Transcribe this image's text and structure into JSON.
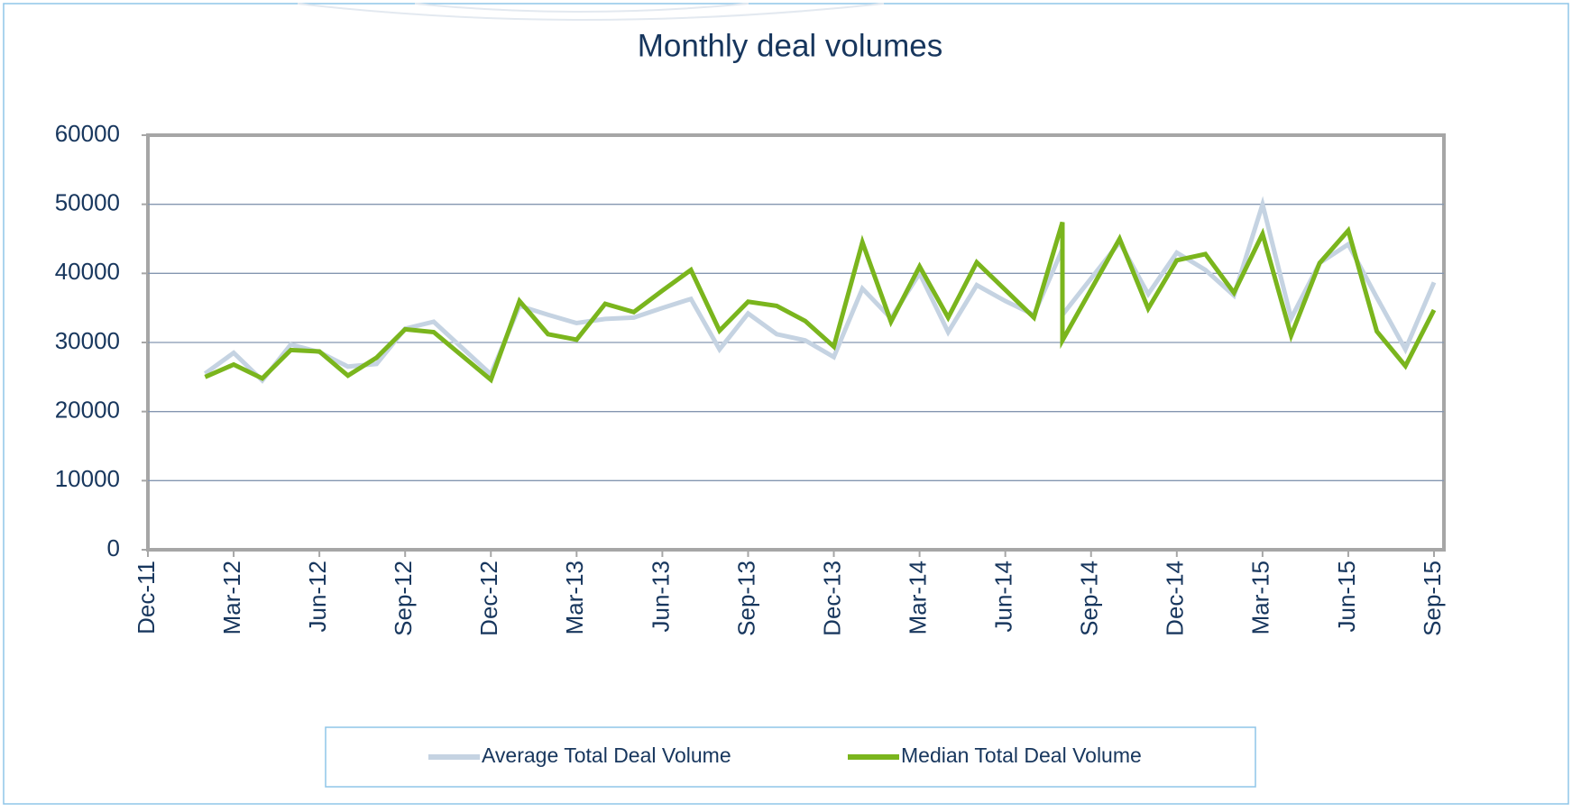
{
  "chart_data": {
    "type": "line",
    "title": "Monthly deal volumes",
    "x": [
      "2012-02",
      "2012-03",
      "2012-04",
      "2012-05",
      "2012-06",
      "2012-07",
      "2012-08",
      "2012-09",
      "2012-10",
      "2012-12",
      "2013-01",
      "2013-02",
      "2013-03",
      "2013-04",
      "2013-05",
      "2013-06",
      "2013-07",
      "2013-08",
      "2013-09",
      "2013-10",
      "2013-11",
      "2013-12",
      "2014-01",
      "2014-02",
      "2014-03",
      "2014-04",
      "2014-05",
      "2014-06",
      "2014-07",
      "2014-08",
      "2014-08",
      "2014-10",
      "2014-11",
      "2014-12",
      "2015-01",
      "2015-02",
      "2015-03",
      "2015-04",
      "2015-05",
      "2015-06",
      "2015-07",
      "2015-08",
      "2015-09"
    ],
    "series": [
      {
        "name": "Average Total Deal Volume",
        "color": "#c5d3e2",
        "values": [
          25500,
          28500,
          24500,
          29700,
          28600,
          26500,
          26900,
          32000,
          33000,
          25400,
          35300,
          34000,
          32800,
          33400,
          33600,
          35000,
          36300,
          29000,
          34200,
          31200,
          30300,
          27900,
          37800,
          33500,
          40000,
          31500,
          38300,
          36000,
          34000,
          43500,
          34000,
          44500,
          37000,
          43000,
          40500,
          36800,
          50000,
          33500,
          41500,
          44200,
          36500,
          29000,
          38700
        ]
      },
      {
        "name": "Median Total Deal Volume",
        "color": "#7ab51d",
        "values": [
          25000,
          26800,
          24800,
          28900,
          28700,
          25200,
          27800,
          31900,
          31500,
          24600,
          36000,
          31200,
          30400,
          35600,
          34400,
          37500,
          40500,
          31700,
          35900,
          35300,
          33100,
          29400,
          44500,
          33000,
          41000,
          33600,
          41600,
          37600,
          33600,
          47400,
          30300,
          45000,
          34900,
          41900,
          42800,
          37200,
          45700,
          31000,
          41500,
          46200,
          31600,
          26600,
          34700
        ]
      }
    ],
    "xlim": [
      "2011-12",
      "2015-09"
    ],
    "xticks": [
      {
        "value": "2011-12",
        "label": "Dec-11"
      },
      {
        "value": "2012-03",
        "label": "Mar-12"
      },
      {
        "value": "2012-06",
        "label": "Jun-12"
      },
      {
        "value": "2012-09",
        "label": "Sep-12"
      },
      {
        "value": "2012-12",
        "label": "Dec-12"
      },
      {
        "value": "2013-03",
        "label": "Mar-13"
      },
      {
        "value": "2013-06",
        "label": "Jun-13"
      },
      {
        "value": "2013-09",
        "label": "Sep-13"
      },
      {
        "value": "2013-12",
        "label": "Dec-13"
      },
      {
        "value": "2014-03",
        "label": "Mar-14"
      },
      {
        "value": "2014-06",
        "label": "Jun-14"
      },
      {
        "value": "2014-09",
        "label": "Sep-14"
      },
      {
        "value": "2014-12",
        "label": "Dec-14"
      },
      {
        "value": "2015-03",
        "label": "Mar-15"
      },
      {
        "value": "2015-06",
        "label": "Jun-15"
      },
      {
        "value": "2015-09",
        "label": "Sep-15"
      }
    ],
    "ylim": [
      0,
      60000
    ],
    "yticks": [
      0,
      10000,
      20000,
      30000,
      40000,
      50000,
      60000
    ],
    "grid": true,
    "legend": "bottom"
  }
}
